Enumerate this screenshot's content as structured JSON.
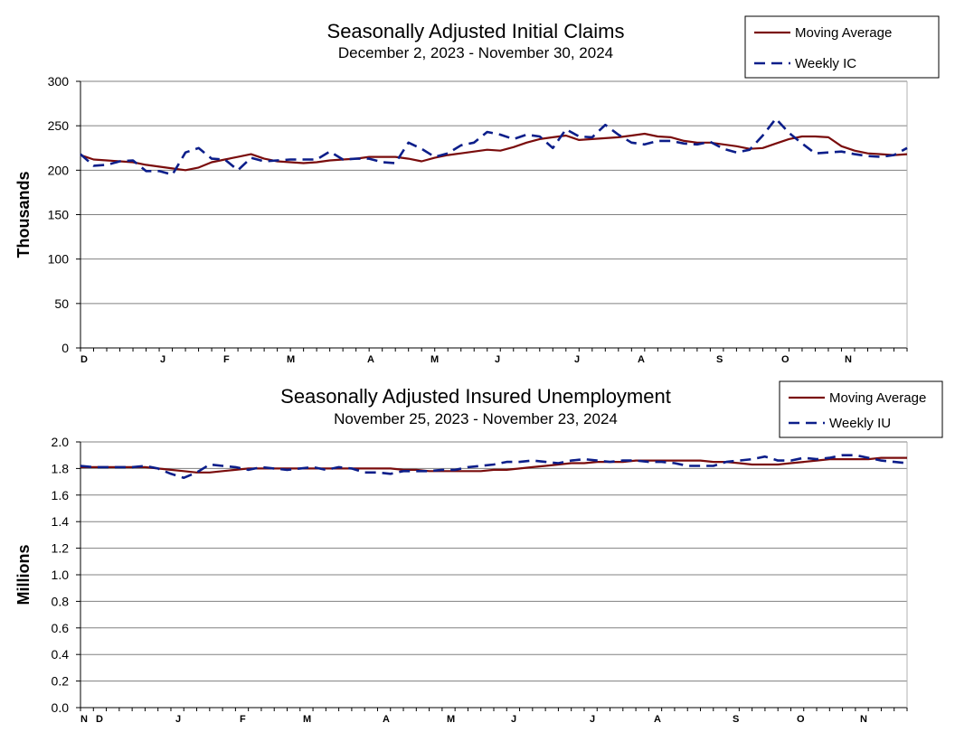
{
  "colors": {
    "moving_average": "#7a0c0c",
    "weekly": "#0c1e8a",
    "grid": "#808080",
    "axis": "#000000"
  },
  "chart_data": [
    {
      "type": "line",
      "title": "Seasonally Adjusted Initial Claims",
      "subtitle": "December 2, 2023 - November 30, 2024",
      "ylabel": "Thousands",
      "ylim": [
        0,
        300
      ],
      "yticks": [
        "0",
        "50",
        "100",
        "150",
        "200",
        "250",
        "300"
      ],
      "month_ticks": [
        "D",
        "J",
        "F",
        "M",
        "A",
        "M",
        "J",
        "J",
        "A",
        "S",
        "O",
        "N"
      ],
      "grid": true,
      "legend_position": "top-right",
      "series": [
        {
          "name": "Moving Average",
          "style": "solid",
          "values": [
            217,
            212,
            211,
            210,
            209,
            206,
            204,
            202,
            200,
            203,
            209,
            212,
            215,
            218,
            213,
            210,
            209,
            208,
            209,
            211,
            212,
            213,
            215,
            215,
            215,
            213,
            210,
            214,
            217,
            219,
            221,
            223,
            222,
            226,
            231,
            235,
            237,
            239,
            234,
            235,
            236,
            237,
            239,
            241,
            238,
            237,
            233,
            231,
            231,
            229,
            227,
            224,
            225,
            230,
            235,
            238,
            238,
            237,
            227,
            222,
            219,
            218,
            217,
            218
          ],
          "dash_override": null
        },
        {
          "name": "Weekly IC",
          "style": "dashed",
          "values": [
            218,
            205,
            206,
            210,
            211,
            199,
            199,
            195,
            220,
            225,
            213,
            212,
            200,
            214,
            210,
            211,
            212,
            212,
            212,
            221,
            212,
            213,
            213,
            209,
            208,
            231,
            224,
            215,
            219,
            228,
            231,
            243,
            240,
            235,
            240,
            238,
            225,
            246,
            238,
            237,
            251,
            240,
            231,
            229,
            233,
            233,
            230,
            229,
            232,
            224,
            220,
            223,
            239,
            258,
            242,
            230,
            219,
            220,
            221,
            218,
            216,
            215,
            217,
            225
          ]
        }
      ]
    },
    {
      "type": "line",
      "title": "Seasonally Adjusted Insured Unemployment",
      "subtitle": "November 25, 2023 - November 23, 2024",
      "ylabel": "Millions",
      "ylim": [
        0,
        2.0
      ],
      "yticks": [
        "0.0",
        "0.2",
        "0.4",
        "0.6",
        "0.8",
        "1.0",
        "1.2",
        "1.4",
        "1.6",
        "1.8",
        "2.0"
      ],
      "month_ticks": [
        "N",
        "D",
        "J",
        "F",
        "M",
        "A",
        "M",
        "J",
        "J",
        "A",
        "S",
        "O",
        "N"
      ],
      "grid": true,
      "legend_position": "top-right",
      "series": [
        {
          "name": "Moving Average",
          "style": "solid",
          "values": [
            1.81,
            1.81,
            1.81,
            1.81,
            1.81,
            1.81,
            1.8,
            1.79,
            1.78,
            1.77,
            1.77,
            1.78,
            1.79,
            1.8,
            1.8,
            1.8,
            1.8,
            1.8,
            1.8,
            1.8,
            1.8,
            1.8,
            1.8,
            1.8,
            1.8,
            1.79,
            1.79,
            1.78,
            1.78,
            1.78,
            1.78,
            1.78,
            1.79,
            1.79,
            1.8,
            1.81,
            1.82,
            1.83,
            1.84,
            1.84,
            1.85,
            1.85,
            1.85,
            1.86,
            1.86,
            1.86,
            1.86,
            1.86,
            1.86,
            1.85,
            1.85,
            1.84,
            1.83,
            1.83,
            1.83,
            1.84,
            1.85,
            1.86,
            1.87,
            1.87,
            1.87,
            1.87,
            1.88,
            1.88,
            1.88
          ],
          "dash_override": null
        },
        {
          "name": "Weekly IU",
          "style": "dashed",
          "values": [
            1.82,
            1.81,
            1.81,
            1.81,
            1.81,
            1.82,
            1.8,
            1.76,
            1.73,
            1.77,
            1.83,
            1.82,
            1.81,
            1.79,
            1.81,
            1.8,
            1.79,
            1.8,
            1.81,
            1.79,
            1.81,
            1.8,
            1.77,
            1.77,
            1.76,
            1.78,
            1.78,
            1.78,
            1.79,
            1.79,
            1.81,
            1.82,
            1.83,
            1.85,
            1.85,
            1.86,
            1.85,
            1.84,
            1.86,
            1.87,
            1.86,
            1.85,
            1.86,
            1.86,
            1.85,
            1.85,
            1.84,
            1.82,
            1.82,
            1.82,
            1.85,
            1.86,
            1.87,
            1.89,
            1.86,
            1.86,
            1.88,
            1.87,
            1.88,
            1.9,
            1.9,
            1.88,
            1.86,
            1.85,
            1.84
          ]
        }
      ]
    }
  ]
}
